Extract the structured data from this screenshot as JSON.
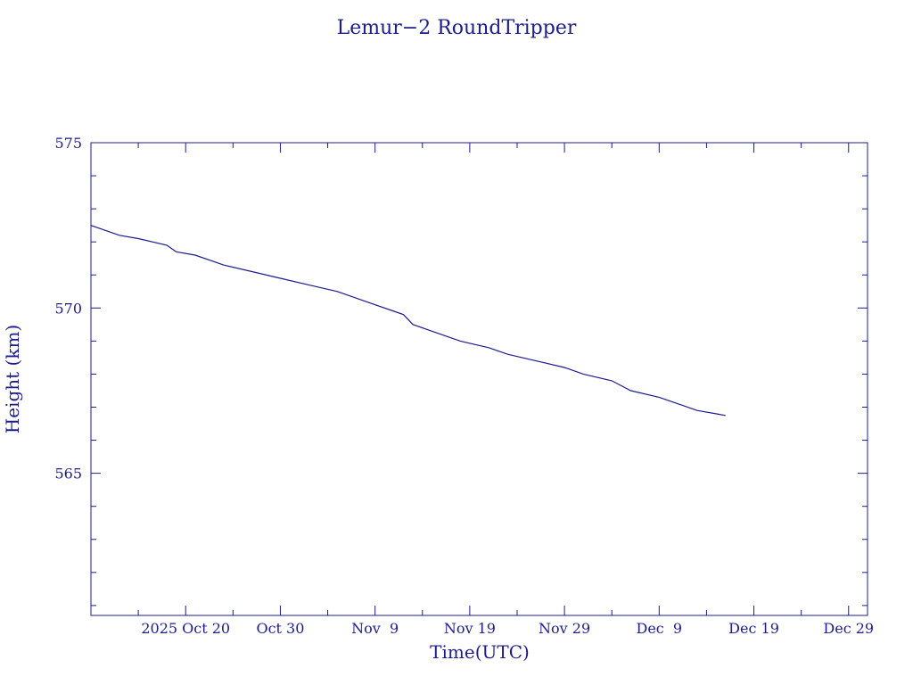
{
  "chart_data": {
    "type": "line",
    "title": "Lemur−2 RoundTripper",
    "xlabel": "Time(UTC)",
    "ylabel": "Height (km)",
    "x_axis_type": "date",
    "xlim": [
      "2025-10-10",
      "2025-12-31"
    ],
    "ylim": [
      560.7,
      575
    ],
    "grid": false,
    "color": "#1c1c8c",
    "x_ticks": [
      {
        "date": "2025-10-20",
        "label": "2025 Oct 20"
      },
      {
        "date": "2025-10-30",
        "label": "Oct 30"
      },
      {
        "date": "2025-11-09",
        "label": "Nov  9"
      },
      {
        "date": "2025-11-19",
        "label": "Nov 19"
      },
      {
        "date": "2025-11-29",
        "label": "Nov 29"
      },
      {
        "date": "2025-12-09",
        "label": "Dec  9"
      },
      {
        "date": "2025-12-19",
        "label": "Dec 19"
      },
      {
        "date": "2025-12-29",
        "label": "Dec 29"
      }
    ],
    "y_ticks": [
      575,
      570,
      565
    ],
    "y_minor_step": 1,
    "x_minor_step_days": 5,
    "series": [
      {
        "x": [
          "2025-10-10",
          "2025-10-12",
          "2025-10-13",
          "2025-10-15",
          "2025-10-18",
          "2025-10-19",
          "2025-10-21",
          "2025-10-24",
          "2025-10-27",
          "2025-10-30",
          "2025-11-02",
          "2025-11-05",
          "2025-11-08",
          "2025-11-11",
          "2025-11-12",
          "2025-11-13",
          "2025-11-15",
          "2025-11-18",
          "2025-11-21",
          "2025-11-23",
          "2025-11-26",
          "2025-11-29",
          "2025-12-01",
          "2025-12-04",
          "2025-12-06",
          "2025-12-09",
          "2025-12-11",
          "2025-12-13",
          "2025-12-15",
          "2025-12-16"
        ],
        "values": [
          572.5,
          572.3,
          572.2,
          572.1,
          571.9,
          571.7,
          571.6,
          571.3,
          571.1,
          570.9,
          570.7,
          570.5,
          570.2,
          569.9,
          569.8,
          569.5,
          569.3,
          569.0,
          568.8,
          568.6,
          568.4,
          568.2,
          568.0,
          567.8,
          567.5,
          567.3,
          567.1,
          566.9,
          566.8,
          566.75
        ]
      }
    ]
  }
}
